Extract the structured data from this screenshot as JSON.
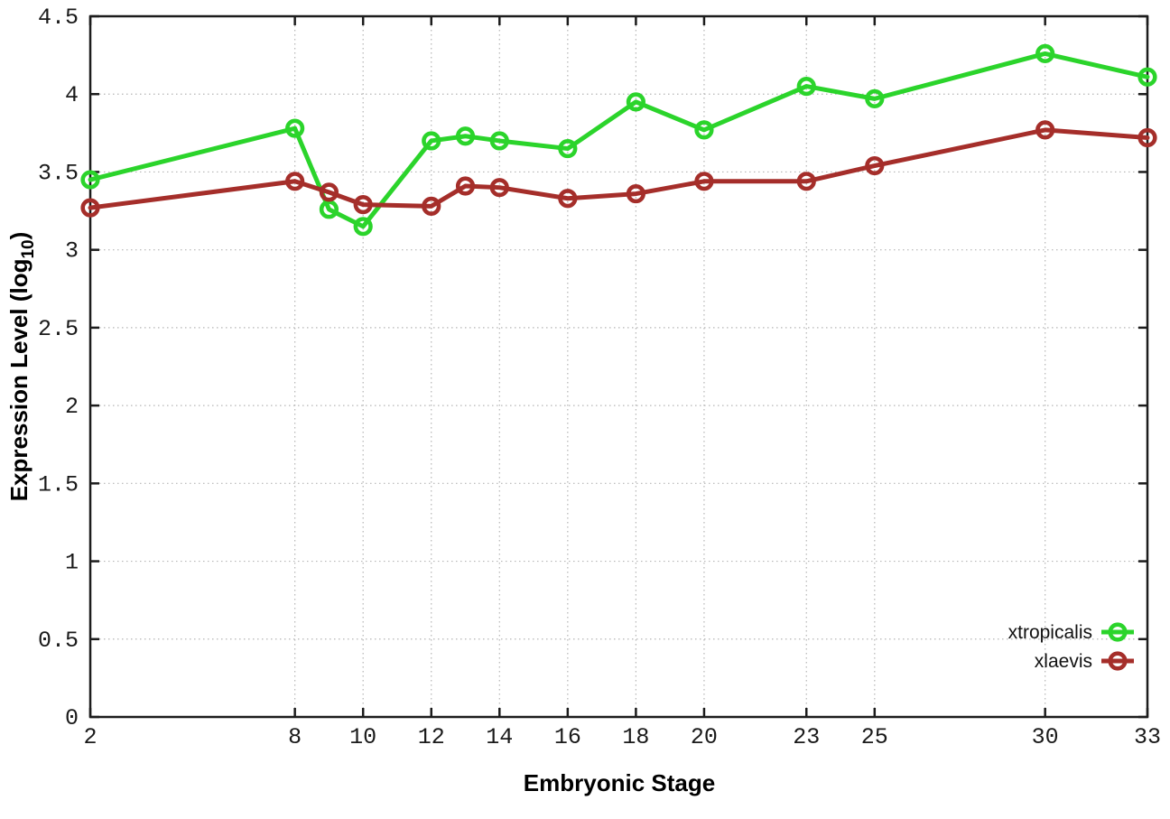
{
  "chart_data": {
    "type": "line",
    "xlabel": "Embryonic Stage",
    "ylabel": {
      "prefix": "Expression Level (log",
      "sub": "10",
      "suffix": ")"
    },
    "x": [
      2,
      8,
      9,
      10,
      12,
      13,
      14,
      16,
      18,
      20,
      23,
      25,
      30,
      33
    ],
    "xticks": [
      2,
      8,
      10,
      12,
      14,
      16,
      18,
      20,
      23,
      25,
      30,
      33
    ],
    "yticks": [
      0,
      0.5,
      1,
      1.5,
      2,
      2.5,
      3,
      3.5,
      4,
      4.5
    ],
    "xlim": [
      2,
      33
    ],
    "ylim": [
      0,
      4.5
    ],
    "grid": true,
    "legend_position": "inside-bottom-right",
    "series": [
      {
        "name": "xtropicalis",
        "color": "#2bd42b",
        "marker": "open-circle",
        "values": [
          3.45,
          3.78,
          3.26,
          3.15,
          3.7,
          3.73,
          3.7,
          3.65,
          3.95,
          3.77,
          4.05,
          3.97,
          4.26,
          4.11
        ]
      },
      {
        "name": "xlaevis",
        "color": "#a52e2a",
        "marker": "open-circle",
        "values": [
          3.27,
          3.44,
          3.37,
          3.29,
          3.28,
          3.41,
          3.4,
          3.33,
          3.36,
          3.44,
          3.44,
          3.54,
          3.77,
          3.72
        ]
      }
    ],
    "grid_color": "#b5b5b5",
    "border_color": "#1c1c1c"
  }
}
